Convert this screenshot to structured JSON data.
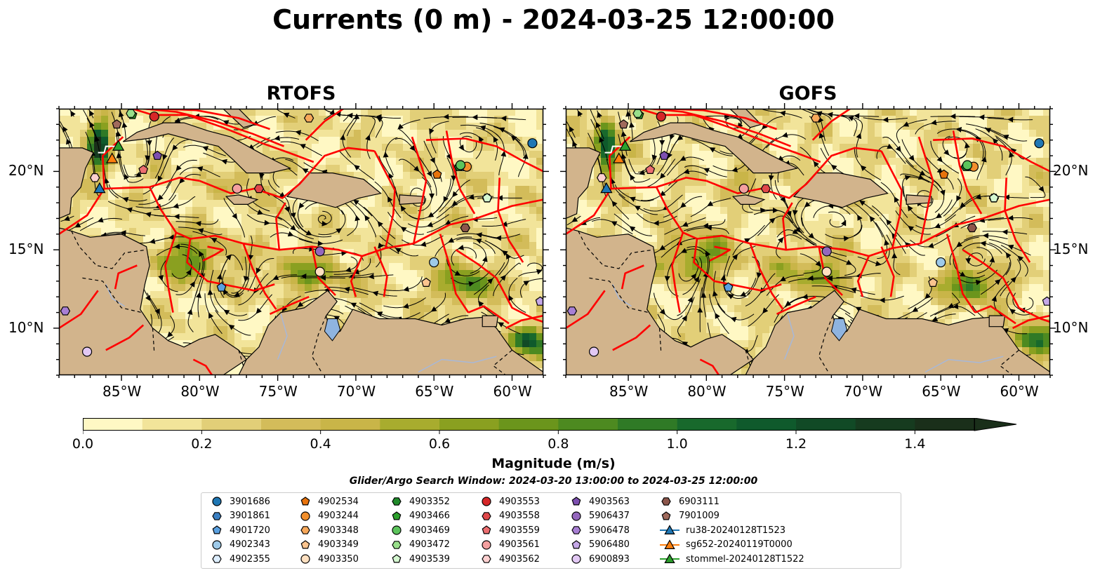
{
  "title": "Currents (0 m) - 2024-03-25 12:00:00",
  "panels": [
    {
      "id": "rtofs",
      "title": "RTOFS"
    },
    {
      "id": "gofs",
      "title": "GOFS"
    }
  ],
  "map": {
    "lon_range": [
      -89,
      -58
    ],
    "lat_range": [
      7,
      24
    ],
    "lon_ticks": [
      {
        "lon": -85,
        "label": "85°W"
      },
      {
        "lon": -80,
        "label": "80°W"
      },
      {
        "lon": -75,
        "label": "75°W"
      },
      {
        "lon": -70,
        "label": "70°W"
      },
      {
        "lon": -65,
        "label": "65°W"
      },
      {
        "lon": -60,
        "label": "60°W"
      }
    ],
    "lat_ticks": [
      {
        "lat": 20,
        "label": "20°N"
      },
      {
        "lat": 15,
        "label": "15°N"
      },
      {
        "lat": 10,
        "label": "10°N"
      }
    ],
    "land_color": "#d2b48c",
    "lake_color": "#8fb4e0",
    "boundary_color": "#ff0000"
  },
  "colorbar": {
    "title": "Magnitude (m/s)",
    "min": 0.0,
    "max": 1.5,
    "extend": "max",
    "tick_labels": [
      {
        "value": 0.0,
        "label": "0.0"
      },
      {
        "value": 0.2,
        "label": "0.2"
      },
      {
        "value": 0.4,
        "label": "0.4"
      },
      {
        "value": 0.6,
        "label": "0.6"
      },
      {
        "value": 0.8,
        "label": "0.8"
      },
      {
        "value": 1.0,
        "label": "1.0"
      },
      {
        "value": 1.2,
        "label": "1.2"
      },
      {
        "value": 1.4,
        "label": "1.4"
      }
    ],
    "colors": [
      "#fff8c4",
      "#f2e49a",
      "#e2cf78",
      "#d3bc5a",
      "#c9b548",
      "#a8ac2e",
      "#8aa020",
      "#6b951c",
      "#4d8a20",
      "#2f7a26",
      "#18692c",
      "#0f5a2c",
      "#114a26",
      "#163b1f",
      "#1a2f1a"
    ]
  },
  "search_window": "Glider/Argo Search Window: 2024-03-20 13:00:00 to 2024-03-25 12:00:00",
  "legend": [
    {
      "label": "3901686",
      "marker": "circle",
      "color": "#1f77b4"
    },
    {
      "label": "3901861",
      "marker": "hexagon",
      "color": "#3a7fc1"
    },
    {
      "label": "4901720",
      "marker": "pentagon",
      "color": "#5aa0e0"
    },
    {
      "label": "4902343",
      "marker": "circle",
      "color": "#9ecae9"
    },
    {
      "label": "4902355",
      "marker": "hexagon",
      "color": "#ddeeff"
    },
    {
      "label": "4902534",
      "marker": "pentagon",
      "color": "#e8730c"
    },
    {
      "label": "4903244",
      "marker": "circle",
      "color": "#f28f2c"
    },
    {
      "label": "4903348",
      "marker": "hexagon",
      "color": "#f7a85a"
    },
    {
      "label": "4903349",
      "marker": "pentagon",
      "color": "#fbc48e"
    },
    {
      "label": "4903350",
      "marker": "circle",
      "color": "#ffe0c0"
    },
    {
      "label": "4903352",
      "marker": "hexagon",
      "color": "#1f8a2a"
    },
    {
      "label": "4903466",
      "marker": "pentagon",
      "color": "#2ca02c"
    },
    {
      "label": "4903469",
      "marker": "circle",
      "color": "#5cc45c"
    },
    {
      "label": "4903472",
      "marker": "hexagon",
      "color": "#98df8a"
    },
    {
      "label": "4903539",
      "marker": "pentagon",
      "color": "#d4f7d0"
    },
    {
      "label": "4903553",
      "marker": "circle",
      "color": "#d62728"
    },
    {
      "label": "4903558",
      "marker": "hexagon",
      "color": "#e0484a"
    },
    {
      "label": "4903559",
      "marker": "pentagon",
      "color": "#ec6e70"
    },
    {
      "label": "4903561",
      "marker": "circle",
      "color": "#f4a0a0"
    },
    {
      "label": "4903562",
      "marker": "hexagon",
      "color": "#fcd0d0"
    },
    {
      "label": "4903563",
      "marker": "pentagon",
      "color": "#7d4fb0"
    },
    {
      "label": "5906437",
      "marker": "circle",
      "color": "#9467bd"
    },
    {
      "label": "5906478",
      "marker": "hexagon",
      "color": "#a87fd4"
    },
    {
      "label": "5906480",
      "marker": "pentagon",
      "color": "#c5a8e8"
    },
    {
      "label": "6900893",
      "marker": "circle",
      "color": "#e2c8f4"
    },
    {
      "label": "6903111",
      "marker": "hexagon",
      "color": "#8c564b"
    },
    {
      "label": "7901009",
      "marker": "pentagon",
      "color": "#a06a5c"
    },
    {
      "label": "ru38-20240128T1523",
      "marker": "triangle-line",
      "color": "#1f77b4"
    },
    {
      "label": "sg652-20240119T0000",
      "marker": "triangle-line",
      "color": "#ff7f0e"
    },
    {
      "label": "stommel-20240128T1522",
      "marker": "triangle-line",
      "color": "#2ca02c"
    }
  ],
  "floats": [
    {
      "id": "3901686",
      "lon": -58.7,
      "lat": 21.8
    },
    {
      "id": "3901861",
      "lon": -63.1,
      "lat": 20.3
    },
    {
      "id": "4901720",
      "lon": -78.6,
      "lat": 12.6
    },
    {
      "id": "4902343",
      "lon": -65.0,
      "lat": 14.2
    },
    {
      "id": "4902355",
      "lon": -61.6,
      "lat": 18.3
    },
    {
      "id": "4902534",
      "lon": -64.8,
      "lat": 19.8
    },
    {
      "id": "4903244",
      "lon": -62.9,
      "lat": 20.3
    },
    {
      "id": "4903348",
      "lon": -73.0,
      "lat": 23.4
    },
    {
      "id": "4903349",
      "lon": -65.5,
      "lat": 12.9
    },
    {
      "id": "4903350",
      "lon": -72.3,
      "lat": 13.6
    },
    {
      "id": "4903352",
      "lon": -63.4,
      "lat": 20.3
    },
    {
      "id": "4903466",
      "lon": -84.3,
      "lat": 23.6
    },
    {
      "id": "4903469",
      "lon": -63.3,
      "lat": 20.4
    },
    {
      "id": "4903472",
      "lon": -84.4,
      "lat": 23.7
    },
    {
      "id": "4903539",
      "lon": -61.6,
      "lat": 18.3
    },
    {
      "id": "4903553",
      "lon": -82.9,
      "lat": 23.5
    },
    {
      "id": "4903558",
      "lon": -76.2,
      "lat": 18.9
    },
    {
      "id": "4903559",
      "lon": -83.6,
      "lat": 20.1
    },
    {
      "id": "4903561",
      "lon": -77.6,
      "lat": 18.9
    },
    {
      "id": "4903562",
      "lon": -86.7,
      "lat": 19.6
    },
    {
      "id": "4903563",
      "lon": -82.7,
      "lat": 21.0
    },
    {
      "id": "5906437",
      "lon": -72.3,
      "lat": 14.9
    },
    {
      "id": "5906478",
      "lon": -88.6,
      "lat": 11.1
    },
    {
      "id": "5906480",
      "lon": -58.2,
      "lat": 11.7
    },
    {
      "id": "6900893",
      "lon": -87.2,
      "lat": 8.5
    },
    {
      "id": "6903111",
      "lon": -63.0,
      "lat": 16.4
    },
    {
      "id": "7901009",
      "lon": -85.3,
      "lat": 23.0
    }
  ],
  "gliders": [
    {
      "id": "ru38-20240128T1523",
      "lon": -86.4,
      "lat": 18.9
    },
    {
      "id": "sg652-20240119T0000",
      "lon": -85.6,
      "lat": 20.8
    },
    {
      "id": "stommel-20240128T1522",
      "lon": -85.2,
      "lat": 21.6
    }
  ]
}
